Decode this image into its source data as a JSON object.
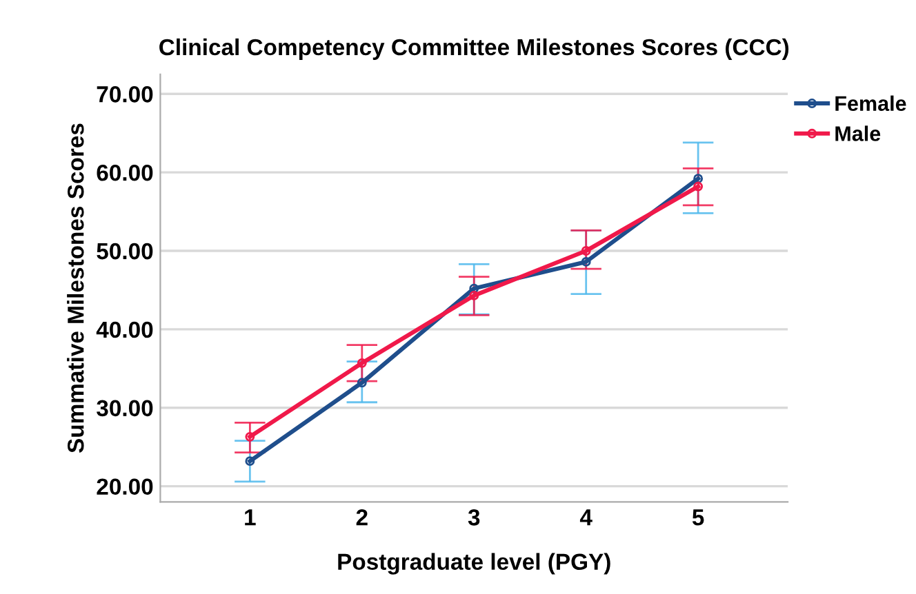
{
  "chart_data": {
    "type": "line",
    "title": "Clinical Competency Committee Milestones Scores (CCC)",
    "xlabel": "Postgraduate level (PGY)",
    "ylabel": "Summative Milestones Scores",
    "categories": [
      "1",
      "2",
      "3",
      "4",
      "5"
    ],
    "series": [
      {
        "name": "Female",
        "color": "#1f4e8c",
        "values": [
          23.2,
          33.2,
          45.2,
          48.6,
          59.2
        ],
        "errors": [
          [
            20.6,
            25.8
          ],
          [
            30.7,
            35.9
          ],
          [
            41.9,
            48.3
          ],
          [
            44.5,
            52.6
          ],
          [
            54.8,
            63.8
          ]
        ]
      },
      {
        "name": "Male",
        "color": "#f0194a",
        "values": [
          26.3,
          35.7,
          44.3,
          50.0,
          58.2
        ],
        "errors": [
          [
            24.3,
            28.1
          ],
          [
            33.4,
            38.0
          ],
          [
            41.8,
            46.7
          ],
          [
            47.7,
            52.6
          ],
          [
            55.8,
            60.5
          ]
        ]
      }
    ],
    "ylim": [
      18,
      72.5
    ],
    "yticks": [
      {
        "value": 20,
        "label": "20.00"
      },
      {
        "value": 30,
        "label": "30.00"
      },
      {
        "value": 40,
        "label": "40.00"
      },
      {
        "value": 50,
        "label": "50.00"
      },
      {
        "value": 60,
        "label": "60.00"
      },
      {
        "value": 70,
        "label": "70.00"
      }
    ],
    "grid": "y",
    "legend": "top right",
    "marker": "circle",
    "line_style": "solid"
  }
}
